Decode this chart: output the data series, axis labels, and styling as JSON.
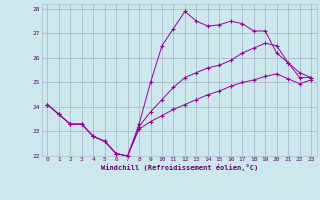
{
  "background_color": "#cce8ed",
  "grid_color": "#aabbcc",
  "line_color": "#990099",
  "marker_color": "#990099",
  "xlabel": "Windchill (Refroidissement éolien,°C)",
  "xlabel_color": "#660066",
  "tick_color": "#660066",
  "xlim": [
    -0.5,
    23.5
  ],
  "ylim": [
    22,
    28.2
  ],
  "yticks": [
    22,
    23,
    24,
    25,
    26,
    27,
    28
  ],
  "xticks": [
    0,
    1,
    2,
    3,
    4,
    5,
    6,
    7,
    8,
    9,
    10,
    11,
    12,
    13,
    14,
    15,
    16,
    17,
    18,
    19,
    20,
    21,
    22,
    23
  ],
  "series": [
    {
      "x": [
        0,
        1,
        2,
        3,
        4,
        5,
        6,
        7,
        8,
        9,
        10,
        11,
        12,
        13,
        14,
        15,
        16,
        17,
        18,
        19,
        20,
        21,
        22,
        23
      ],
      "y": [
        24.1,
        23.7,
        23.3,
        23.3,
        22.8,
        22.6,
        22.1,
        22.0,
        23.3,
        25.0,
        26.5,
        27.2,
        27.9,
        27.5,
        27.3,
        27.35,
        27.5,
        27.4,
        27.1,
        27.1,
        26.2,
        25.8,
        25.2,
        25.2
      ]
    },
    {
      "x": [
        0,
        1,
        2,
        3,
        4,
        5,
        6,
        7,
        8,
        9,
        10,
        11,
        12,
        13,
        14,
        15,
        16,
        17,
        18,
        19,
        20,
        21,
        22,
        23
      ],
      "y": [
        24.1,
        23.7,
        23.3,
        23.3,
        22.8,
        22.6,
        22.1,
        22.0,
        23.2,
        23.8,
        24.3,
        24.8,
        25.2,
        25.4,
        25.6,
        25.7,
        25.9,
        26.2,
        26.4,
        26.6,
        26.5,
        25.8,
        25.4,
        25.2
      ]
    },
    {
      "x": [
        0,
        1,
        2,
        3,
        4,
        5,
        6,
        7,
        8,
        9,
        10,
        11,
        12,
        13,
        14,
        15,
        16,
        17,
        18,
        19,
        20,
        21,
        22,
        23
      ],
      "y": [
        24.1,
        23.7,
        23.3,
        23.3,
        22.8,
        22.6,
        22.1,
        22.0,
        23.1,
        23.4,
        23.65,
        23.9,
        24.1,
        24.3,
        24.5,
        24.65,
        24.85,
        25.0,
        25.1,
        25.25,
        25.35,
        25.15,
        24.95,
        25.1
      ]
    }
  ]
}
